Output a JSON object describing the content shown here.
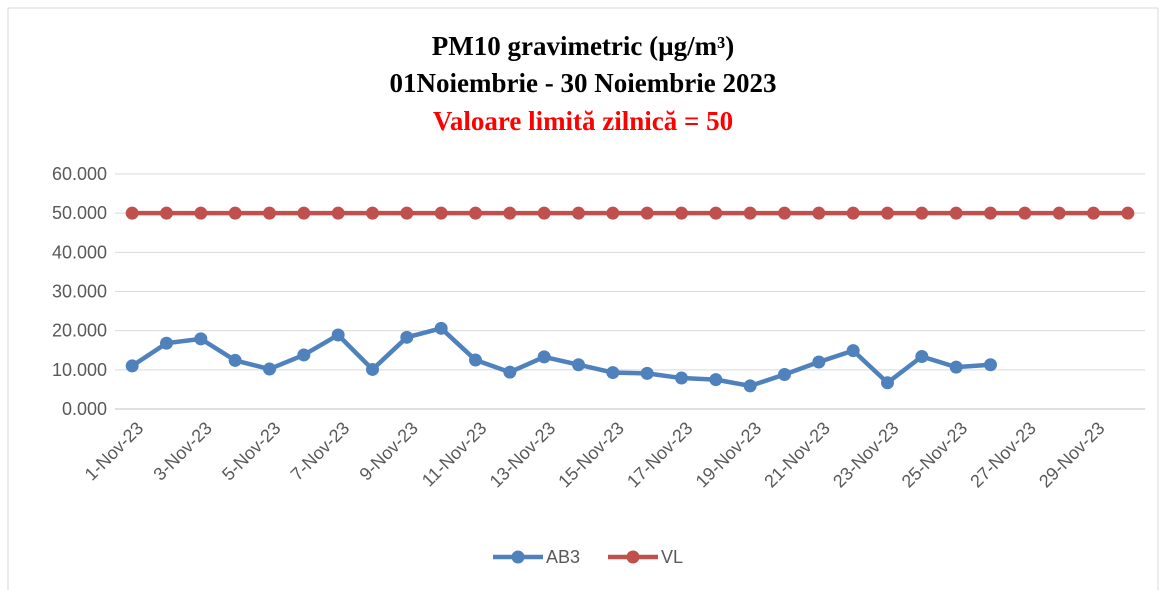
{
  "chart_data": {
    "type": "line",
    "title": "PM10 gravimetric  (µg/m³)",
    "subtitle": "01Noiembrie - 30 Noiembrie 2023",
    "annotation": "Valoare limită zilnică = 50",
    "annotation_color": "#ff0000",
    "categories": [
      "1-Nov-23",
      null,
      "3-Nov-23",
      null,
      "5-Nov-23",
      null,
      "7-Nov-23",
      null,
      "9-Nov-23",
      null,
      "11-Nov-23",
      null,
      "13-Nov-23",
      null,
      "15-Nov-23",
      null,
      "17-Nov-23",
      null,
      "19-Nov-23",
      null,
      "21-Nov-23",
      null,
      "23-Nov-23",
      null,
      "25-Nov-23",
      null,
      "27-Nov-23",
      null,
      "29-Nov-23",
      null
    ],
    "series": [
      {
        "name": "AB3",
        "color": "#4f81bd",
        "values": [
          11.0,
          16.8,
          17.9,
          12.4,
          10.2,
          13.8,
          18.9,
          10.1,
          18.3,
          20.6,
          12.5,
          9.4,
          13.3,
          11.3,
          9.3,
          9.1,
          7.9,
          7.5,
          5.9,
          8.8,
          12.0,
          14.9,
          6.7,
          13.4,
          10.7,
          11.3,
          null,
          null,
          null,
          null
        ]
      },
      {
        "name": "VL",
        "color": "#c0504d",
        "values": [
          50,
          50,
          50,
          50,
          50,
          50,
          50,
          50,
          50,
          50,
          50,
          50,
          50,
          50,
          50,
          50,
          50,
          50,
          50,
          50,
          50,
          50,
          50,
          50,
          50,
          50,
          50,
          50,
          50,
          50
        ]
      }
    ],
    "ylim": [
      0,
      60
    ],
    "yticks": [
      {
        "value": 0,
        "label": "0.000"
      },
      {
        "value": 10,
        "label": "10.000"
      },
      {
        "value": 20,
        "label": "20.000"
      },
      {
        "value": 30,
        "label": "30.000"
      },
      {
        "value": 40,
        "label": "40.000"
      },
      {
        "value": 50,
        "label": "50.000"
      },
      {
        "value": 60,
        "label": "60.000"
      }
    ],
    "grid": true,
    "legend": "bottom"
  }
}
